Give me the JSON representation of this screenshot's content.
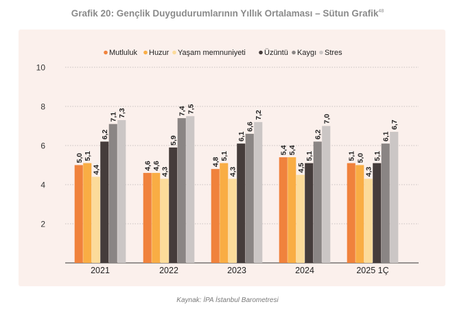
{
  "title": "Grafik 20: Gençlik Duygudurumlarının Yıllık Ortalaması – Sütun Grafik",
  "title_sup": "48",
  "source": "Kaynak: İPA İstanbul Barometresi",
  "chart_data": {
    "type": "bar",
    "categories": [
      "2021",
      "2022",
      "2023",
      "2024",
      "2025 1Ç"
    ],
    "series": [
      {
        "name": "Mutluluk",
        "color": "#f0823c",
        "values": [
          5.0,
          4.6,
          4.8,
          5.4,
          5.1
        ],
        "labels": [
          "5,0",
          "4,6",
          "4,8",
          "5,4",
          "5,1"
        ]
      },
      {
        "name": "Huzur",
        "color": "#f9ad44",
        "values": [
          5.1,
          4.6,
          5.1,
          5.4,
          5.0
        ],
        "labels": [
          "5,1",
          "4,6",
          "5,1",
          "5,4",
          "5,0"
        ]
      },
      {
        "name": "Yaşam memnuniyeti",
        "color": "#fcdb9a",
        "values": [
          4.4,
          4.3,
          4.3,
          4.5,
          4.3
        ],
        "labels": [
          "4,4",
          "4,3",
          "4,3",
          "4,5",
          "4,3"
        ]
      },
      {
        "name": "Üzüntü",
        "color": "#453c3b",
        "values": [
          6.2,
          5.9,
          6.1,
          5.1,
          5.1
        ],
        "labels": [
          "6,2",
          "5,9",
          "6,1",
          "5,1",
          "5,1"
        ]
      },
      {
        "name": "Kaygı",
        "color": "#8a8584",
        "values": [
          7.1,
          7.4,
          6.6,
          6.2,
          6.1
        ],
        "labels": [
          "7,1",
          "7,4",
          "6,6",
          "6,2",
          "6,1"
        ]
      },
      {
        "name": "Stres",
        "color": "#cbc6c5",
        "values": [
          7.3,
          7.5,
          7.2,
          7.0,
          6.7
        ],
        "labels": [
          "7,3",
          "7,5",
          "7,2",
          "7,0",
          "6,7"
        ]
      }
    ],
    "yticks": [
      "2",
      "4",
      "6",
      "8",
      "10"
    ],
    "ylim": [
      0,
      10
    ],
    "grid": true,
    "legend": "top"
  }
}
